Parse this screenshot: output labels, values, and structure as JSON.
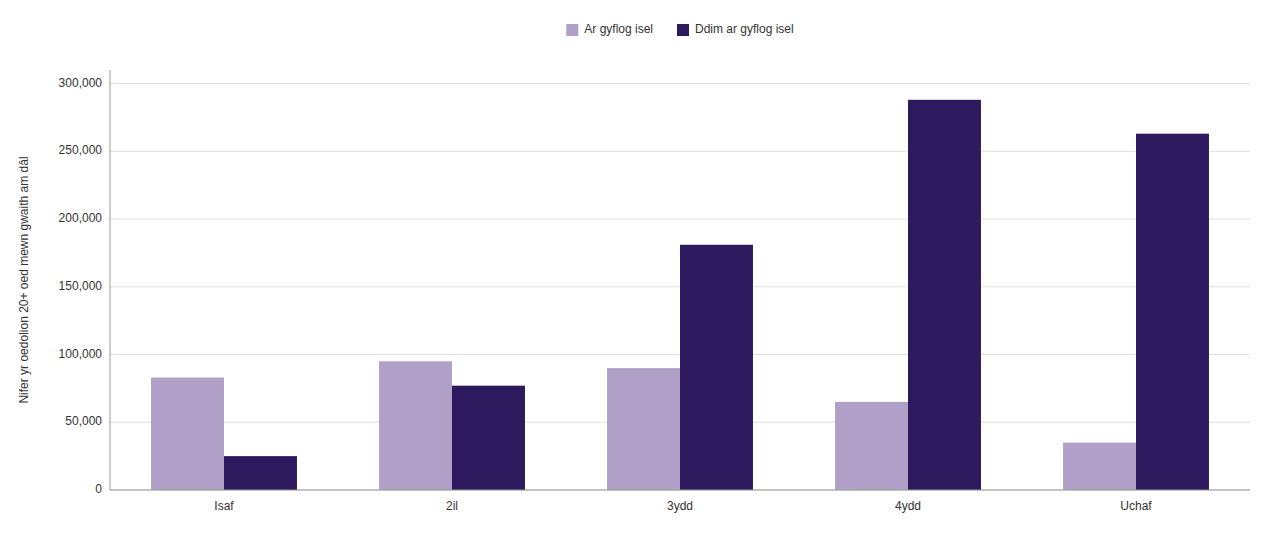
{
  "chart_data": {
    "type": "bar",
    "categories": [
      "Isaf",
      "2il",
      "3ydd",
      "4ydd",
      "Uchaf"
    ],
    "series": [
      {
        "name": "Ar gyflog isel",
        "color": "#b0a0c8",
        "values": [
          83000,
          95000,
          90000,
          65000,
          35000
        ]
      },
      {
        "name": "Ddim ar gyflog isel",
        "color": "#2d1a5e",
        "values": [
          25000,
          77000,
          181000,
          288000,
          263000
        ]
      }
    ],
    "ylabel": "Nifer yr oedolion 20+ oed mewn gwaith am dâl",
    "ylim": [
      0,
      310000
    ],
    "yticks": [
      0,
      {
        "value": 50000,
        "label": "50,000"
      },
      {
        "value": 100000,
        "label": "100,000"
      },
      {
        "value": 150000,
        "label": "150,000"
      },
      {
        "value": 200000,
        "label": "200,000"
      },
      {
        "value": 250000,
        "label": "250,000"
      },
      {
        "value": 300000,
        "label": "300,000"
      }
    ],
    "grid": true,
    "legend": "top"
  }
}
